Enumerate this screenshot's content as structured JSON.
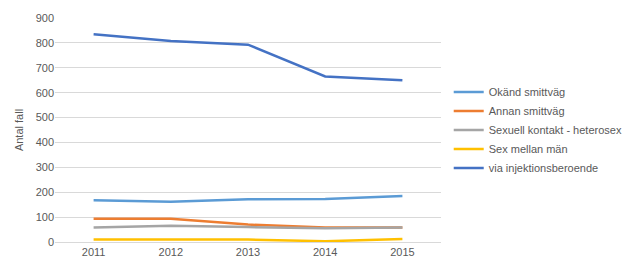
{
  "chart_data": {
    "type": "line",
    "y_label": "Antal fall",
    "categories": [
      "2011",
      "2012",
      "2013",
      "2014",
      "2015"
    ],
    "series": [
      {
        "name": "Okänd smittväg",
        "color": "#5B9BD5",
        "values": [
          168,
          162,
          172,
          173,
          185
        ]
      },
      {
        "name": "Annan smittväg",
        "color": "#ED7D31",
        "values": [
          93,
          93,
          70,
          58,
          58
        ]
      },
      {
        "name": "Sexuell kontakt - heterosex",
        "color": "#A5A5A5",
        "values": [
          58,
          65,
          60,
          55,
          58
        ]
      },
      {
        "name": "Sex mellan män",
        "color": "#FFC000",
        "values": [
          10,
          10,
          10,
          3,
          12
        ]
      },
      {
        "name": "via injektionsberoende",
        "color": "#4472C4",
        "values": [
          835,
          808,
          793,
          665,
          650
        ]
      }
    ],
    "ylim": [
      0,
      900
    ],
    "yticks": [
      0,
      100,
      200,
      300,
      400,
      500,
      600,
      700,
      800,
      900
    ],
    "grid": true,
    "legend": "right"
  }
}
